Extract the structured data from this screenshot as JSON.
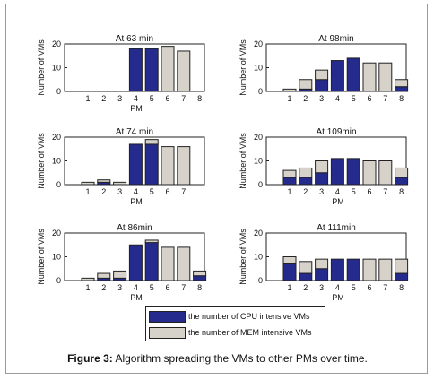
{
  "figure": {
    "caption_label": "Figure 3:",
    "caption_text": "Algorithm spreading the VMs to other PMs over time."
  },
  "colors": {
    "cpu": "#242b8c",
    "mem": "#d6d2ca",
    "edge": "#222222"
  },
  "legend": {
    "cpu": "the number of CPU intensive VMs",
    "mem": "the number of MEM intensive VMs"
  },
  "chart_data": [
    {
      "type": "bar",
      "stacked": true,
      "title": "At 63 min",
      "xlabel": "PM",
      "ylabel": "Number of VMs",
      "categories": [
        "1",
        "2",
        "3",
        "4",
        "5",
        "6",
        "7",
        "8"
      ],
      "ylim": [
        0,
        20
      ],
      "yticks": [
        0,
        10,
        20
      ],
      "series": [
        {
          "name": "the number of CPU intensive VMs",
          "values": [
            0,
            0,
            0,
            18,
            18,
            0,
            0,
            0
          ]
        },
        {
          "name": "the number of MEM intensive VMs",
          "values": [
            0,
            0,
            0,
            0,
            0,
            19,
            17,
            0
          ]
        }
      ]
    },
    {
      "type": "bar",
      "stacked": true,
      "title": "At 98min",
      "xlabel": "",
      "ylabel": "Number of VMs",
      "categories": [
        "1",
        "2",
        "3",
        "4",
        "5",
        "6",
        "7",
        "8"
      ],
      "ylim": [
        0,
        20
      ],
      "yticks": [
        0,
        10,
        20
      ],
      "series": [
        {
          "name": "the number of CPU intensive VMs",
          "values": [
            0,
            1,
            5,
            13,
            14,
            0,
            0,
            2
          ]
        },
        {
          "name": "the number of MEM intensive VMs",
          "values": [
            1,
            4,
            4,
            0,
            0,
            12,
            12,
            3
          ]
        }
      ]
    },
    {
      "type": "bar",
      "stacked": true,
      "title": "At 74 min",
      "xlabel": "PM",
      "ylabel": "Number of VMs",
      "categories": [
        "1",
        "2",
        "3",
        "4",
        "5",
        "6",
        "7"
      ],
      "ylim": [
        0,
        20
      ],
      "yticks": [
        0,
        10,
        20
      ],
      "series": [
        {
          "name": "the number of CPU intensive VMs",
          "values": [
            0,
            1,
            0,
            17,
            17,
            0,
            0
          ]
        },
        {
          "name": "the number of MEM intensive VMs",
          "values": [
            1,
            1,
            1,
            0,
            2,
            16,
            16
          ]
        }
      ]
    },
    {
      "type": "bar",
      "stacked": true,
      "title": "At 109min",
      "xlabel": "PM",
      "ylabel": "Number of VMs",
      "categories": [
        "1",
        "2",
        "3",
        "4",
        "5",
        "6",
        "7",
        "8"
      ],
      "ylim": [
        0,
        20
      ],
      "yticks": [
        0,
        10,
        20
      ],
      "series": [
        {
          "name": "the number of CPU intensive VMs",
          "values": [
            3,
            3,
            5,
            11,
            11,
            0,
            0,
            3
          ]
        },
        {
          "name": "the number of MEM intensive VMs",
          "values": [
            3,
            4,
            5,
            0,
            0,
            10,
            10,
            4
          ]
        }
      ]
    },
    {
      "type": "bar",
      "stacked": true,
      "title": "At 86min",
      "xlabel": "PM",
      "ylabel": "Number of VMs",
      "categories": [
        "1",
        "2",
        "3",
        "4",
        "5",
        "6",
        "7",
        "8"
      ],
      "ylim": [
        0,
        20
      ],
      "yticks": [
        0,
        10,
        20
      ],
      "series": [
        {
          "name": "the number of CPU intensive VMs",
          "values": [
            0,
            1,
            1,
            15,
            16,
            0,
            0,
            2
          ]
        },
        {
          "name": "the number of MEM intensive VMs",
          "values": [
            1,
            2,
            3,
            0,
            1,
            14,
            14,
            2
          ]
        }
      ]
    },
    {
      "type": "bar",
      "stacked": true,
      "title": "At 111min",
      "xlabel": "PM",
      "ylabel": "Number of VMs",
      "categories": [
        "1",
        "2",
        "3",
        "4",
        "5",
        "6",
        "7",
        "8"
      ],
      "ylim": [
        0,
        20
      ],
      "yticks": [
        0,
        10,
        20
      ],
      "series": [
        {
          "name": "the number of CPU intensive VMs",
          "values": [
            7,
            3,
            5,
            9,
            9,
            0,
            0,
            3
          ]
        },
        {
          "name": "the number of MEM intensive VMs",
          "values": [
            3,
            5,
            4,
            0,
            0,
            9,
            9,
            6
          ]
        }
      ]
    }
  ]
}
